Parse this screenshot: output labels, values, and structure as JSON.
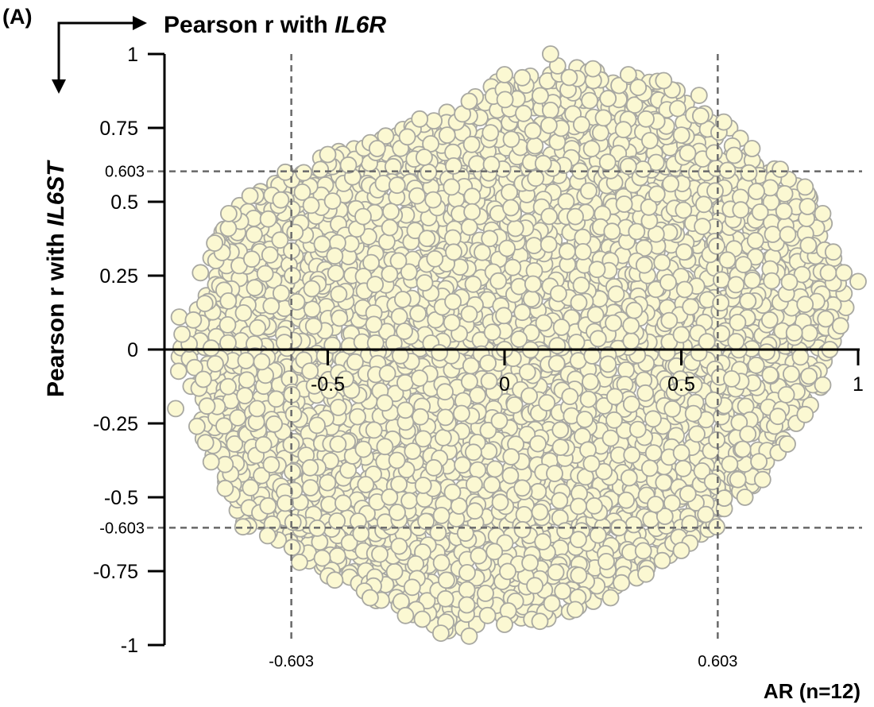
{
  "panel_label": "(A)",
  "chart_data": {
    "type": "scatter",
    "title": "",
    "xlabel_prefix": "Pearson r with ",
    "xlabel_gene": "IL6R",
    "ylabel_prefix": "Pearson r with ",
    "ylabel_gene": "IL6ST",
    "subset_label": "AR (n=12)",
    "xlim": [
      -1,
      1
    ],
    "ylim": [
      -1,
      1
    ],
    "x_ticks": [
      {
        "value": -0.5,
        "label": "-0.5"
      },
      {
        "value": 0,
        "label": "0"
      },
      {
        "value": 0.5,
        "label": "0.5"
      },
      {
        "value": 1,
        "label": "1"
      }
    ],
    "y_ticks": [
      {
        "value": 1,
        "label": "1"
      },
      {
        "value": 0.75,
        "label": "0.75"
      },
      {
        "value": 0.5,
        "label": "0.5"
      },
      {
        "value": 0.25,
        "label": "0.25"
      },
      {
        "value": 0,
        "label": "0"
      },
      {
        "value": -0.25,
        "label": "-0.25"
      },
      {
        "value": -0.5,
        "label": "-0.5"
      },
      {
        "value": -0.75,
        "label": "-0.75"
      },
      {
        "value": -1,
        "label": "-1"
      }
    ],
    "thresholds": {
      "x": [
        {
          "value": -0.603,
          "label": "-0.603"
        },
        {
          "value": 0.603,
          "label": "0.603"
        }
      ],
      "y": [
        {
          "value": 0.603,
          "label": "0.603"
        },
        {
          "value": -0.603,
          "label": "-0.603"
        }
      ]
    },
    "point_fill": "#fbf8d2",
    "point_stroke": "#a8a8a2",
    "threshold_color": "#6e6e6e",
    "grid": false,
    "legend": "none",
    "point_cloud_description": "dense cloud of gene correlations spanning x≈-0.92 to 1.0 and y≈-0.98 to 1.0",
    "series": [
      {
        "points": [
          [
            -0.92,
            0.11
          ],
          [
            -0.93,
            -0.2
          ],
          [
            -0.88,
            0.1
          ],
          [
            -0.82,
            0.36
          ],
          [
            -0.86,
            0.26
          ],
          [
            -0.78,
            0.46
          ],
          [
            -0.72,
            0.52
          ],
          [
            -0.62,
            0.6
          ],
          [
            -0.5,
            0.66
          ],
          [
            -0.38,
            0.7
          ],
          [
            -0.24,
            0.78
          ],
          [
            -0.1,
            0.84
          ],
          [
            0.0,
            0.93
          ],
          [
            0.05,
            0.92
          ],
          [
            0.15,
            0.96
          ],
          [
            0.25,
            0.95
          ],
          [
            0.35,
            0.93
          ],
          [
            0.45,
            0.91
          ],
          [
            0.55,
            0.86
          ],
          [
            0.62,
            0.77
          ],
          [
            0.7,
            0.68
          ],
          [
            0.78,
            0.61
          ],
          [
            0.85,
            0.55
          ],
          [
            0.9,
            0.46
          ],
          [
            0.93,
            0.33
          ],
          [
            0.96,
            0.26
          ],
          [
            1.0,
            0.23
          ],
          [
            0.95,
            0.08
          ],
          [
            0.92,
            0.0
          ],
          [
            0.9,
            -0.12
          ],
          [
            0.85,
            -0.22
          ],
          [
            0.8,
            -0.32
          ],
          [
            0.73,
            -0.44
          ],
          [
            0.68,
            -0.5
          ],
          [
            0.6,
            -0.6
          ],
          [
            0.5,
            -0.68
          ],
          [
            0.4,
            -0.76
          ],
          [
            0.3,
            -0.84
          ],
          [
            0.2,
            -0.88
          ],
          [
            0.1,
            -0.92
          ],
          [
            0.0,
            -0.93
          ],
          [
            -0.1,
            -0.97
          ],
          [
            -0.18,
            -0.96
          ],
          [
            -0.28,
            -0.9
          ],
          [
            -0.38,
            -0.84
          ],
          [
            -0.48,
            -0.78
          ],
          [
            -0.58,
            -0.72
          ],
          [
            -0.67,
            -0.63
          ],
          [
            -0.74,
            -0.6
          ],
          [
            -0.79,
            -0.47
          ],
          [
            -0.83,
            -0.38
          ],
          [
            -0.87,
            -0.26
          ],
          [
            0.13,
            1.0
          ],
          [
            0.08,
            0.74
          ],
          [
            -0.36,
            0.68
          ],
          [
            0.66,
            -0.44
          ],
          [
            0.4,
            0.78
          ],
          [
            -0.55,
            -0.4
          ],
          [
            -0.3,
            0.3
          ],
          [
            0.3,
            -0.3
          ],
          [
            -0.1,
            0.12
          ],
          [
            0.2,
            0.45
          ],
          [
            -0.45,
            -0.1
          ],
          [
            0.5,
            0.05
          ],
          [
            0.1,
            -0.55
          ],
          [
            -0.2,
            -0.4
          ],
          [
            0.6,
            0.35
          ],
          [
            -0.6,
            0.25
          ],
          [
            0.35,
            0.62
          ],
          [
            -0.15,
            0.55
          ],
          [
            0.75,
            0.1
          ],
          [
            -0.7,
            -0.2
          ],
          [
            0.0,
            0.0
          ],
          [
            0.45,
            -0.45
          ],
          [
            -0.4,
            0.45
          ]
        ]
      }
    ]
  }
}
